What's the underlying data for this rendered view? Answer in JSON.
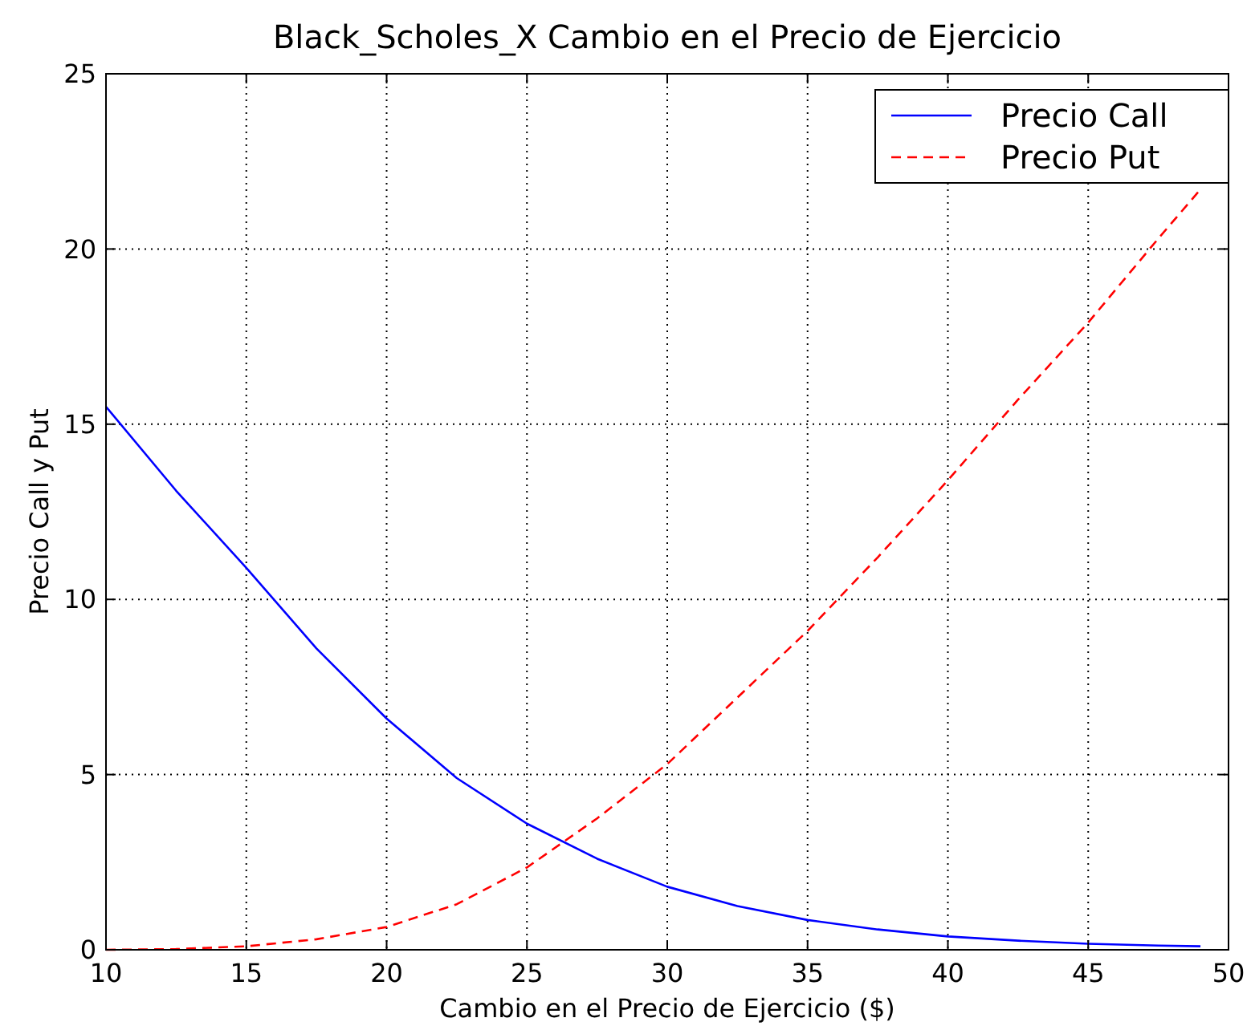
{
  "chart_data": {
    "type": "line",
    "title": "Black_Scholes_X Cambio en el Precio de Ejercicio",
    "xlabel": "Cambio en el Precio de Ejercicio ($)",
    "ylabel": "Precio Call y Put",
    "x": [
      10,
      12.5,
      15,
      17.5,
      20,
      22.5,
      25,
      27.5,
      30,
      32.5,
      35,
      37.5,
      40,
      42.5,
      45,
      47.5,
      49
    ],
    "series": [
      {
        "name": "Precio Call",
        "color": "#0000ff",
        "line_style": "solid",
        "values": [
          15.5,
          13.1,
          10.9,
          8.6,
          6.6,
          4.9,
          3.6,
          2.6,
          1.8,
          1.25,
          0.85,
          0.58,
          0.38,
          0.26,
          0.17,
          0.12,
          0.1
        ]
      },
      {
        "name": "Precio Put",
        "color": "#ff0000",
        "line_style": "dashed",
        "values": [
          0,
          0.02,
          0.1,
          0.3,
          0.65,
          1.3,
          2.35,
          3.75,
          5.3,
          7.2,
          9.1,
          11.2,
          13.4,
          15.7,
          17.9,
          20.3,
          21.7
        ]
      }
    ],
    "xlim": [
      10,
      50
    ],
    "ylim": [
      0,
      25
    ],
    "xticks": [
      10,
      15,
      20,
      25,
      30,
      35,
      40,
      45,
      50
    ],
    "yticks": [
      0,
      5,
      10,
      15,
      20,
      25
    ],
    "grid": true,
    "legend": "top right"
  }
}
